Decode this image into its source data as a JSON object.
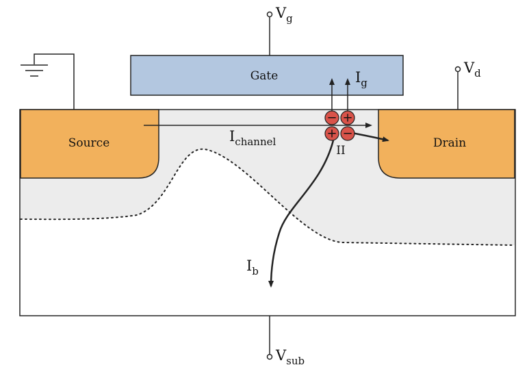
{
  "labels": {
    "gate": "Gate",
    "source": "Source",
    "drain": "Drain",
    "impact_ionization": "II"
  },
  "terminals": {
    "gate": {
      "base": "V",
      "sub": "g"
    },
    "drain": {
      "base": "V",
      "sub": "d"
    },
    "substrate": {
      "base": "V",
      "sub": "sub"
    }
  },
  "currents": {
    "channel": {
      "base": "I",
      "sub": "channel"
    },
    "gate": {
      "base": "I",
      "sub": "g"
    },
    "bulk": {
      "base": "I",
      "sub": "b"
    }
  },
  "carriers": {
    "top_left": "−",
    "top_right": "+",
    "bottom_left": "+",
    "bottom_right": "−"
  },
  "colors": {
    "gate_fill": "#b3c7e0",
    "source_drain_fill": "#f2b15c",
    "channel_region_fill": "#ececec",
    "substrate_fill": "#ffffff",
    "carrier_fill": "#d9534a",
    "line": "#222222"
  }
}
